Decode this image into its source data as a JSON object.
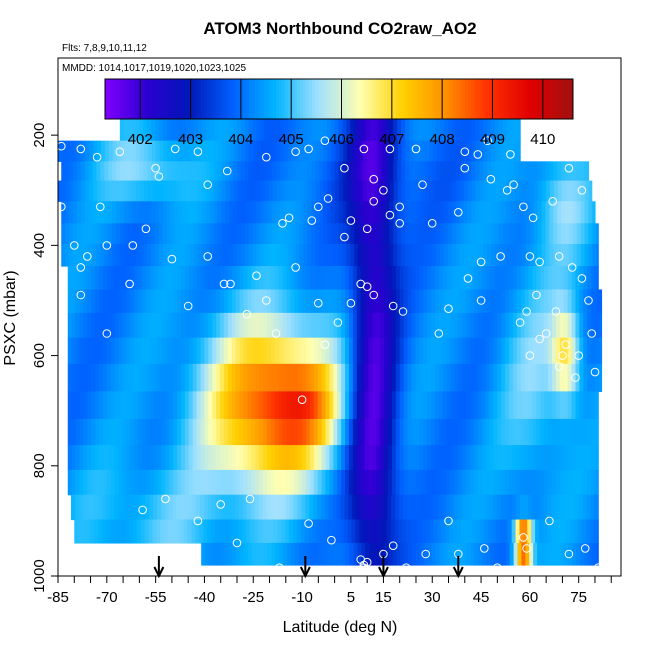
{
  "chart_data": {
    "type": "heatmap",
    "title": "ATOM3 Northbound CO2raw_AO2",
    "annotations": [
      "Flts: 7,8,9,10,11,12",
      "MMDD: 1014,1017,1019,1020,1023,1025"
    ],
    "xlabel": "Latitude (deg N)",
    "ylabel": "PSXC (mbar)",
    "xlim": [
      -85,
      88
    ],
    "ylim": [
      1000,
      60
    ],
    "y_reversed": true,
    "x_ticks": [
      -85,
      -70,
      -55,
      -40,
      -25,
      -10,
      5,
      15,
      30,
      45,
      60,
      75
    ],
    "y_ticks": [
      200,
      400,
      600,
      800,
      1000
    ],
    "colorbar": {
      "min": 401.3,
      "max": 410.6,
      "ticks": [
        402,
        403,
        404,
        405,
        406,
        407,
        408,
        409,
        410
      ],
      "colors": [
        "#8000ff",
        "#2a00d0",
        "#0018b8",
        "#0060ff",
        "#00b4ff",
        "#a0e0ff",
        "#ffffb0",
        "#ffd000",
        "#ff9000",
        "#ff3000",
        "#e00000",
        "#a01010"
      ]
    },
    "pressure_levels": [
      190,
      230,
      265,
      300,
      340,
      380,
      415,
      460,
      500,
      545,
      590,
      640,
      690,
      740,
      785,
      830,
      875,
      920,
      960
    ],
    "level_lat_ranges": [
      [
        -66,
        57
      ],
      [
        -85,
        57
      ],
      [
        -84,
        78
      ],
      [
        -85,
        79
      ],
      [
        -84,
        80
      ],
      [
        -84,
        81
      ],
      [
        -84,
        81
      ],
      [
        -82,
        81
      ],
      [
        -82,
        82
      ],
      [
        -82,
        82
      ],
      [
        -82,
        82
      ],
      [
        -82,
        82
      ],
      [
        -82,
        81
      ],
      [
        -82,
        81
      ],
      [
        -82,
        81
      ],
      [
        -82,
        81
      ],
      [
        -81,
        81
      ],
      [
        -80,
        81
      ],
      [
        -41,
        81
      ]
    ],
    "field_centers": [
      {
        "lat": -20,
        "p": 690,
        "amp": 4.4,
        "s_lat": 14,
        "s_p": 105
      },
      {
        "lat": -8,
        "p": 690,
        "amp": 1.5,
        "s_lat": 8,
        "s_p": 60
      },
      {
        "lat": 12,
        "p": 500,
        "amp": -2.2,
        "s_lat": 5,
        "s_p": 400
      },
      {
        "lat": 10,
        "p": 800,
        "amp": -1.0,
        "s_lat": 6,
        "s_p": 120
      },
      {
        "lat": 10,
        "p": 260,
        "amp": -0.5,
        "s_lat": 18,
        "s_p": 70
      },
      {
        "lat": -58,
        "p": 260,
        "amp": 1.3,
        "s_lat": 10,
        "s_p": 45
      },
      {
        "lat": -55,
        "p": 900,
        "amp": 0.8,
        "s_lat": 18,
        "s_p": 80
      },
      {
        "lat": 71,
        "p": 600,
        "amp": 2.4,
        "s_lat": 3,
        "s_p": 60
      },
      {
        "lat": 62,
        "p": 640,
        "amp": 1.0,
        "s_lat": 8,
        "s_p": 150
      },
      {
        "lat": 58,
        "p": 940,
        "amp": 5.5,
        "s_lat": 1.8,
        "s_p": 28
      },
      {
        "lat": 70,
        "p": 320,
        "amp": 1.2,
        "s_lat": 6,
        "s_p": 70
      }
    ],
    "field_base": 404.2,
    "observation_points": [
      [
        -84,
        330
      ],
      [
        -80,
        400
      ],
      [
        -78,
        440
      ],
      [
        -76,
        420
      ],
      [
        -78,
        490
      ],
      [
        -72,
        330
      ],
      [
        -70,
        400
      ],
      [
        -70,
        560
      ],
      [
        -63,
        470
      ],
      [
        -62,
        400
      ],
      [
        -58,
        370
      ],
      [
        -55,
        260
      ],
      [
        -49,
        225
      ],
      [
        -50,
        425
      ],
      [
        -54,
        275
      ],
      [
        -45,
        510
      ],
      [
        -39,
        420
      ],
      [
        -34,
        470
      ],
      [
        -27,
        525
      ],
      [
        -32,
        470
      ],
      [
        -24,
        455
      ],
      [
        -21,
        500
      ],
      [
        -18,
        560
      ],
      [
        -12,
        440
      ],
      [
        -10,
        680
      ],
      [
        -3,
        580
      ],
      [
        -5,
        505
      ],
      [
        1,
        540
      ],
      [
        3,
        385
      ],
      [
        5,
        355
      ],
      [
        10,
        370
      ],
      [
        12,
        280
      ],
      [
        9,
        225
      ],
      [
        15,
        300
      ],
      [
        17,
        225
      ],
      [
        18,
        510
      ],
      [
        20,
        360
      ],
      [
        21,
        520
      ],
      [
        25,
        225
      ],
      [
        27,
        290
      ],
      [
        30,
        360
      ],
      [
        32,
        560
      ],
      [
        35,
        515
      ],
      [
        38,
        340
      ],
      [
        40,
        260
      ],
      [
        41,
        460
      ],
      [
        45,
        430
      ],
      [
        45,
        500
      ],
      [
        47,
        210
      ],
      [
        48,
        280
      ],
      [
        51,
        420
      ],
      [
        54,
        235
      ],
      [
        55,
        290
      ],
      [
        57,
        540
      ],
      [
        59,
        520
      ],
      [
        60,
        420
      ],
      [
        62,
        490
      ],
      [
        63,
        430
      ],
      [
        65,
        560
      ],
      [
        67,
        230
      ],
      [
        68,
        520
      ],
      [
        69,
        420
      ],
      [
        70,
        600
      ],
      [
        71,
        580
      ],
      [
        73,
        440
      ],
      [
        75,
        600
      ],
      [
        76,
        460
      ],
      [
        78,
        500
      ],
      [
        79,
        560
      ],
      [
        80,
        630
      ],
      [
        -60,
        950
      ],
      [
        -59,
        880
      ],
      [
        -52,
        860
      ],
      [
        -42,
        900
      ],
      [
        -35,
        870
      ],
      [
        -30,
        940
      ],
      [
        -26,
        860
      ],
      [
        -17,
        985
      ],
      [
        -8,
        905
      ],
      [
        -1,
        935
      ],
      [
        9,
        980
      ],
      [
        8,
        970
      ],
      [
        9,
        985
      ],
      [
        10,
        975
      ],
      [
        15,
        960
      ],
      [
        18,
        945
      ],
      [
        22,
        985
      ],
      [
        28,
        960
      ],
      [
        35,
        900
      ],
      [
        38,
        960
      ],
      [
        46,
        950
      ],
      [
        50,
        985
      ],
      [
        58,
        930
      ],
      [
        59,
        950
      ],
      [
        66,
        900
      ],
      [
        72,
        960
      ],
      [
        77,
        950
      ],
      [
        81,
        985
      ],
      [
        -84,
        220
      ],
      [
        -78,
        225
      ],
      [
        -66,
        230
      ],
      [
        -73,
        240
      ],
      [
        -42,
        230
      ],
      [
        -33,
        265
      ],
      [
        -39,
        290
      ],
      [
        -21,
        240
      ],
      [
        -12,
        230
      ],
      [
        -8,
        225
      ],
      [
        -3,
        210
      ],
      [
        3,
        260
      ],
      [
        12,
        320
      ],
      [
        17,
        345
      ],
      [
        20,
        330
      ],
      [
        40,
        230
      ],
      [
        44,
        235
      ],
      [
        53,
        300
      ],
      [
        58,
        330
      ],
      [
        61,
        350
      ],
      [
        67,
        320
      ],
      [
        72,
        260
      ],
      [
        76,
        300
      ],
      [
        -5,
        330
      ],
      [
        -2,
        315
      ],
      [
        -14,
        350
      ],
      [
        -16,
        360
      ],
      [
        -7,
        355
      ],
      [
        5,
        505
      ],
      [
        8,
        470
      ],
      [
        10,
        475
      ],
      [
        12,
        490
      ],
      [
        60,
        600
      ],
      [
        63,
        570
      ],
      [
        69,
        620
      ],
      [
        74,
        640
      ]
    ],
    "arrows_at_latitudes": [
      -54,
      -9,
      15,
      38
    ]
  }
}
